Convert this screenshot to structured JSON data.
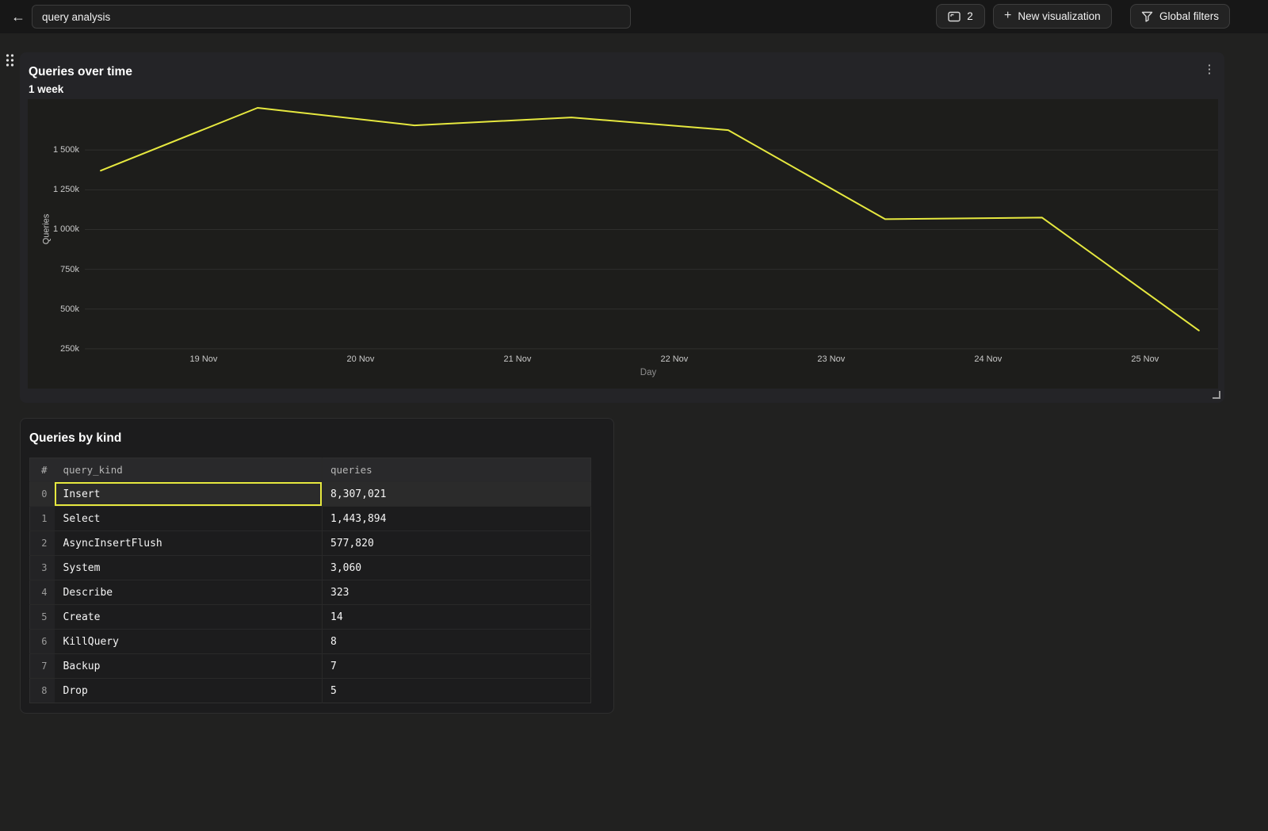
{
  "colors": {
    "accent": "#e6e83f",
    "line": "#e6e83f",
    "panel_bg": "#242427",
    "page_bg": "#212120"
  },
  "topbar": {
    "back_icon": "←",
    "title_input": {
      "value": "query analysis"
    },
    "panels_button": {
      "count": "2"
    },
    "new_viz_button": {
      "plus_icon": "+",
      "label": "New visualization"
    },
    "global_filters_button": {
      "label": "Global filters"
    }
  },
  "chart_panel": {
    "title": "Queries over time",
    "subtitle": "1 week",
    "kebab_icon": "⋮"
  },
  "chart_data": {
    "type": "line",
    "title": "Queries over time",
    "subtitle": "1 week",
    "xlabel": "Day",
    "ylabel": "Queries",
    "ylim": [
      0,
      1820000
    ],
    "grid": true,
    "legend": "none",
    "line_color": "#e6e83f",
    "yticks": [
      {
        "value": 250000,
        "label": "250k"
      },
      {
        "value": 500000,
        "label": "500k"
      },
      {
        "value": 750000,
        "label": "750k"
      },
      {
        "value": 1000000,
        "label": "1 000k"
      },
      {
        "value": 1250000,
        "label": "1 250k"
      },
      {
        "value": 1500000,
        "label": "1 500k"
      }
    ],
    "xticks": [
      "19 Nov",
      "20 Nov",
      "21 Nov",
      "22 Nov",
      "23 Nov",
      "24 Nov",
      "25 Nov"
    ],
    "points": [
      {
        "x": "18 Nov",
        "y": 1370000
      },
      {
        "x": "19 Nov",
        "y": 1765000
      },
      {
        "x": "20 Nov",
        "y": 1655000
      },
      {
        "x": "21 Nov",
        "y": 1705000
      },
      {
        "x": "22 Nov",
        "y": 1625000
      },
      {
        "x": "23 Nov",
        "y": 1065000
      },
      {
        "x": "24 Nov",
        "y": 1075000
      },
      {
        "x": "25 Nov",
        "y": 365000
      }
    ],
    "layout": {
      "point_start_frac": 0.0613,
      "point_step_frac": 0.1318,
      "tick_start_frac": 0.1478,
      "grid_left_frac": 0.048
    }
  },
  "table_panel": {
    "title": "Queries by kind",
    "columns": [
      "#",
      "query_kind",
      "queries"
    ],
    "rows": [
      {
        "index": "0",
        "query_kind": "Insert",
        "queries": "8,307,021"
      },
      {
        "index": "1",
        "query_kind": "Select",
        "queries": "1,443,894"
      },
      {
        "index": "2",
        "query_kind": "AsyncInsertFlush",
        "queries": "577,820"
      },
      {
        "index": "3",
        "query_kind": "System",
        "queries": "3,060"
      },
      {
        "index": "4",
        "query_kind": "Describe",
        "queries": "323"
      },
      {
        "index": "5",
        "query_kind": "Create",
        "queries": "14"
      },
      {
        "index": "6",
        "query_kind": "KillQuery",
        "queries": "8"
      },
      {
        "index": "7",
        "query_kind": "Backup",
        "queries": "7"
      },
      {
        "index": "8",
        "query_kind": "Drop",
        "queries": "5"
      }
    ],
    "selected_cell": {
      "row": 0,
      "column": "query_kind"
    }
  }
}
